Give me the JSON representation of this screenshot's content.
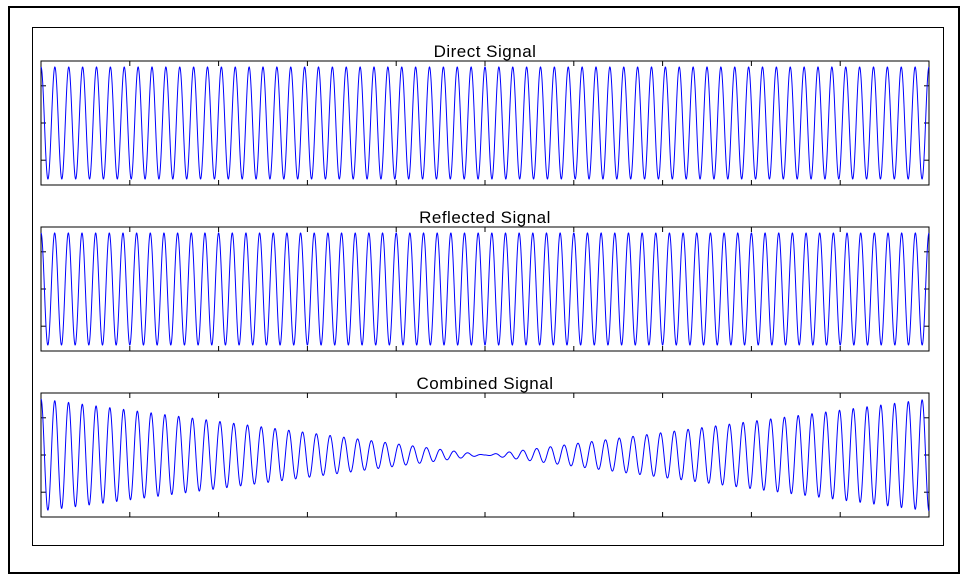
{
  "chart_data": [
    {
      "type": "line",
      "title": "Direct Signal",
      "xlabel": "",
      "ylabel": "",
      "xlim": [
        0,
        1
      ],
      "ylim": [
        -1,
        1
      ],
      "grid": false,
      "series": [
        {
          "color": "#0000ff",
          "cycles": 64,
          "amplitude": 1.0,
          "envelope": "constant"
        }
      ]
    },
    {
      "type": "line",
      "title": "Reflected Signal",
      "xlabel": "",
      "ylabel": "",
      "xlim": [
        0,
        1
      ],
      "ylim": [
        -1,
        1
      ],
      "grid": false,
      "series": [
        {
          "color": "#0000ff",
          "cycles": 65,
          "amplitude": 1.0,
          "envelope": "constant"
        }
      ]
    },
    {
      "type": "line",
      "title": "Combined Signal",
      "xlabel": "",
      "ylabel": "",
      "xlim": [
        0,
        1
      ],
      "ylim": [
        -2,
        2
      ],
      "grid": false,
      "series": [
        {
          "color": "#0000ff",
          "cycles": 64.5,
          "amplitude": 2.0,
          "envelope": "beat"
        }
      ]
    }
  ]
}
